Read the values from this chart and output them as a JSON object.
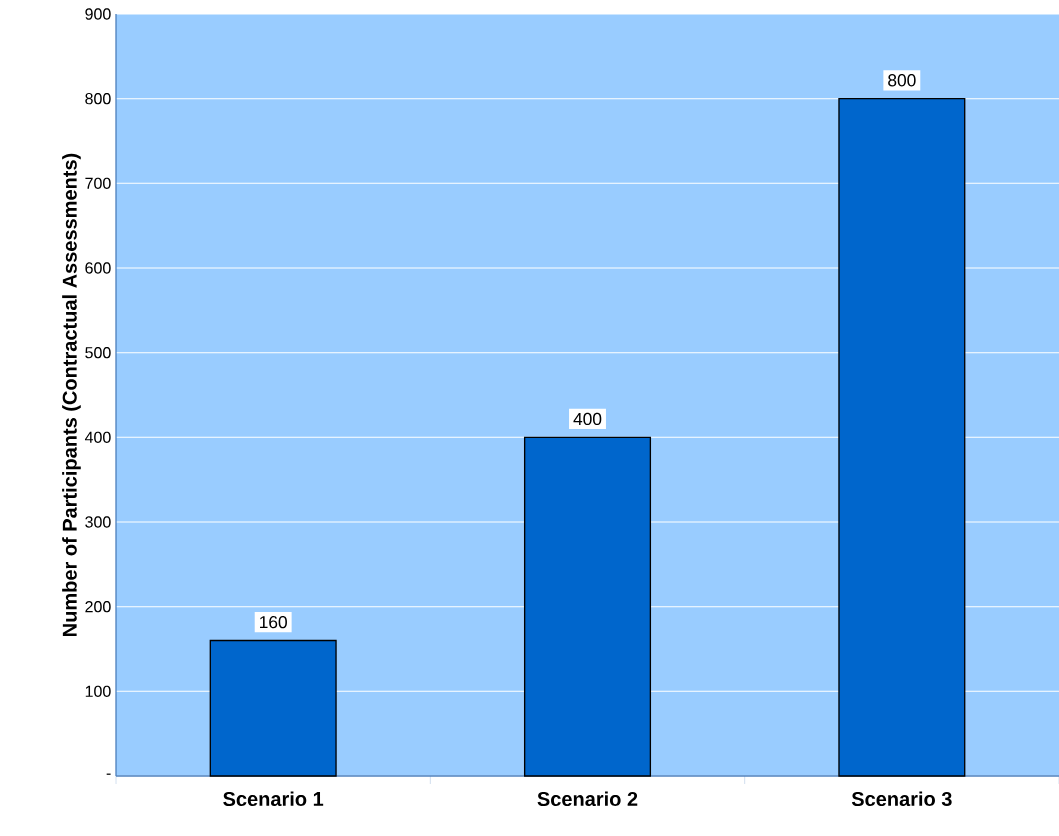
{
  "chart_data": {
    "type": "bar",
    "ylabel": "Number of Participants (Contractual Assessments)",
    "categories": [
      "Scenario 1",
      "Scenario 2",
      "Scenario 3"
    ],
    "values": [
      160,
      400,
      800
    ],
    "color": "#0066cc",
    "ylim": [
      0,
      900
    ],
    "yticks": [
      {
        "value": 0,
        "label": "-"
      },
      100,
      200,
      300,
      400,
      500,
      600,
      700,
      800,
      900
    ],
    "grid": "y",
    "data_labels": true
  }
}
